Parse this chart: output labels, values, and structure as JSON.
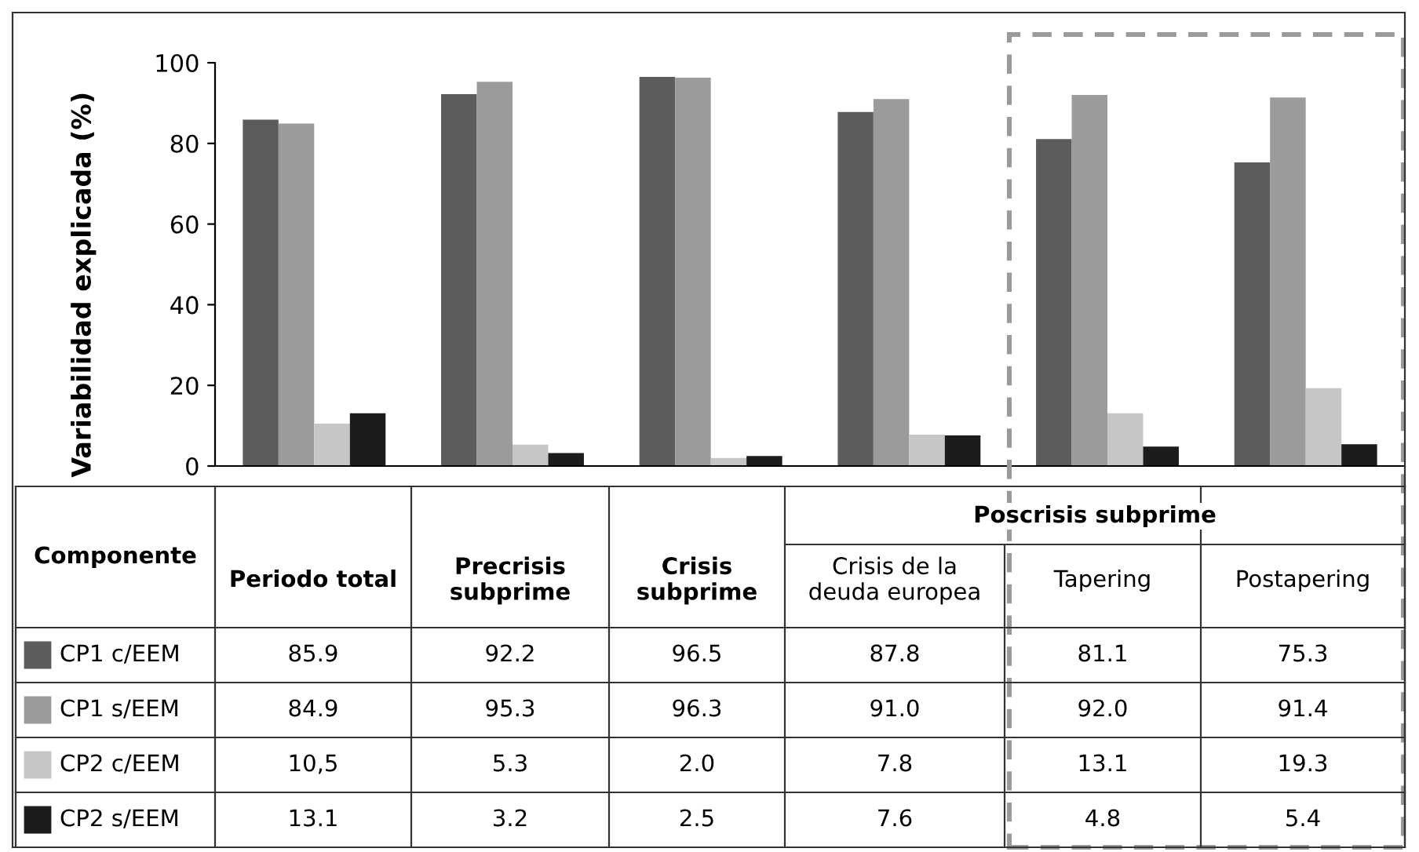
{
  "chart_data": {
    "type": "bar",
    "ylabel": "Variabilidad explicada (%)",
    "categories": [
      "Periodo total",
      "Precrisis\nsubprime",
      "Crisis\nsubprime",
      "Crisis de la\ndeuda europea",
      "Tapering",
      "Postapering"
    ],
    "series": [
      {
        "name": "CP1 c/EEM",
        "color": "#5c5c5c",
        "values": [
          85.9,
          92.2,
          96.5,
          87.8,
          81.1,
          75.3
        ],
        "value_labels": [
          "85.9",
          "92.2",
          "96.5",
          "87.8",
          "81.1",
          "75.3"
        ]
      },
      {
        "name": "CP1 s/EEM",
        "color": "#9b9b9b",
        "values": [
          84.9,
          95.3,
          96.3,
          91.0,
          92.0,
          91.4
        ],
        "value_labels": [
          "84.9",
          "95.3",
          "96.3",
          "91.0",
          "92.0",
          "91.4"
        ]
      },
      {
        "name": "CP2 c/EEM",
        "color": "#c6c6c6",
        "values": [
          10.5,
          5.3,
          2.0,
          7.8,
          13.1,
          19.3
        ],
        "value_labels": [
          "10,5",
          "5.3",
          "2.0",
          "7.8",
          "13.1",
          "19.3"
        ]
      },
      {
        "name": "CP2 s/EEM",
        "color": "#1c1c1c",
        "values": [
          13.1,
          3.2,
          2.5,
          7.6,
          4.8,
          5.4
        ],
        "value_labels": [
          "13.1",
          "3.2",
          "2.5",
          "7.6",
          "4.8",
          "5.4"
        ]
      }
    ],
    "ylim": [
      0,
      100
    ],
    "yticks": [
      0,
      20,
      40,
      60,
      80,
      100
    ],
    "grid": false,
    "legend": "bottom",
    "annotations": [
      "Componente",
      "Poscrisis subprime"
    ]
  }
}
